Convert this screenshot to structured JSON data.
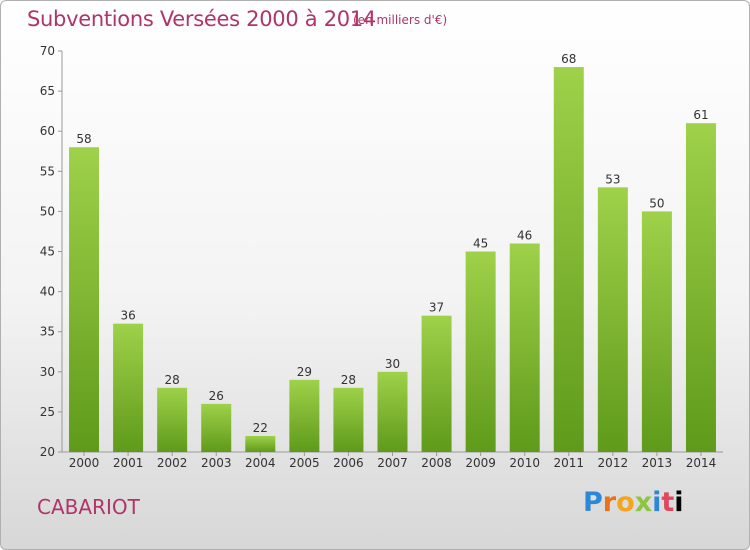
{
  "header": {
    "title": "Subventions Versées 2000 à 2014",
    "subtitle": "(en milliers d'€)"
  },
  "footer": {
    "commune": "CABARIOT",
    "logo_letters": [
      "P",
      "r",
      "o",
      "x",
      "i",
      "t",
      "i"
    ]
  },
  "colors": {
    "title": "#b0346a",
    "bar_top": "#9fd14a",
    "bar_bottom": "#5f9a1a"
  },
  "chart_data": {
    "type": "bar",
    "title": "Subventions Versées 2000 à 2014",
    "subtitle": "(en milliers d'€)",
    "categories": [
      "2000",
      "2001",
      "2002",
      "2003",
      "2004",
      "2005",
      "2006",
      "2007",
      "2008",
      "2009",
      "2010",
      "2011",
      "2012",
      "2013",
      "2014"
    ],
    "values": [
      58,
      36,
      28,
      26,
      22,
      29,
      28,
      30,
      37,
      45,
      46,
      68,
      53,
      50,
      61
    ],
    "ylim": [
      20,
      70
    ],
    "yticks": [
      20,
      25,
      30,
      35,
      40,
      45,
      50,
      55,
      60,
      65,
      70
    ],
    "grid": false,
    "data_labels": true
  }
}
